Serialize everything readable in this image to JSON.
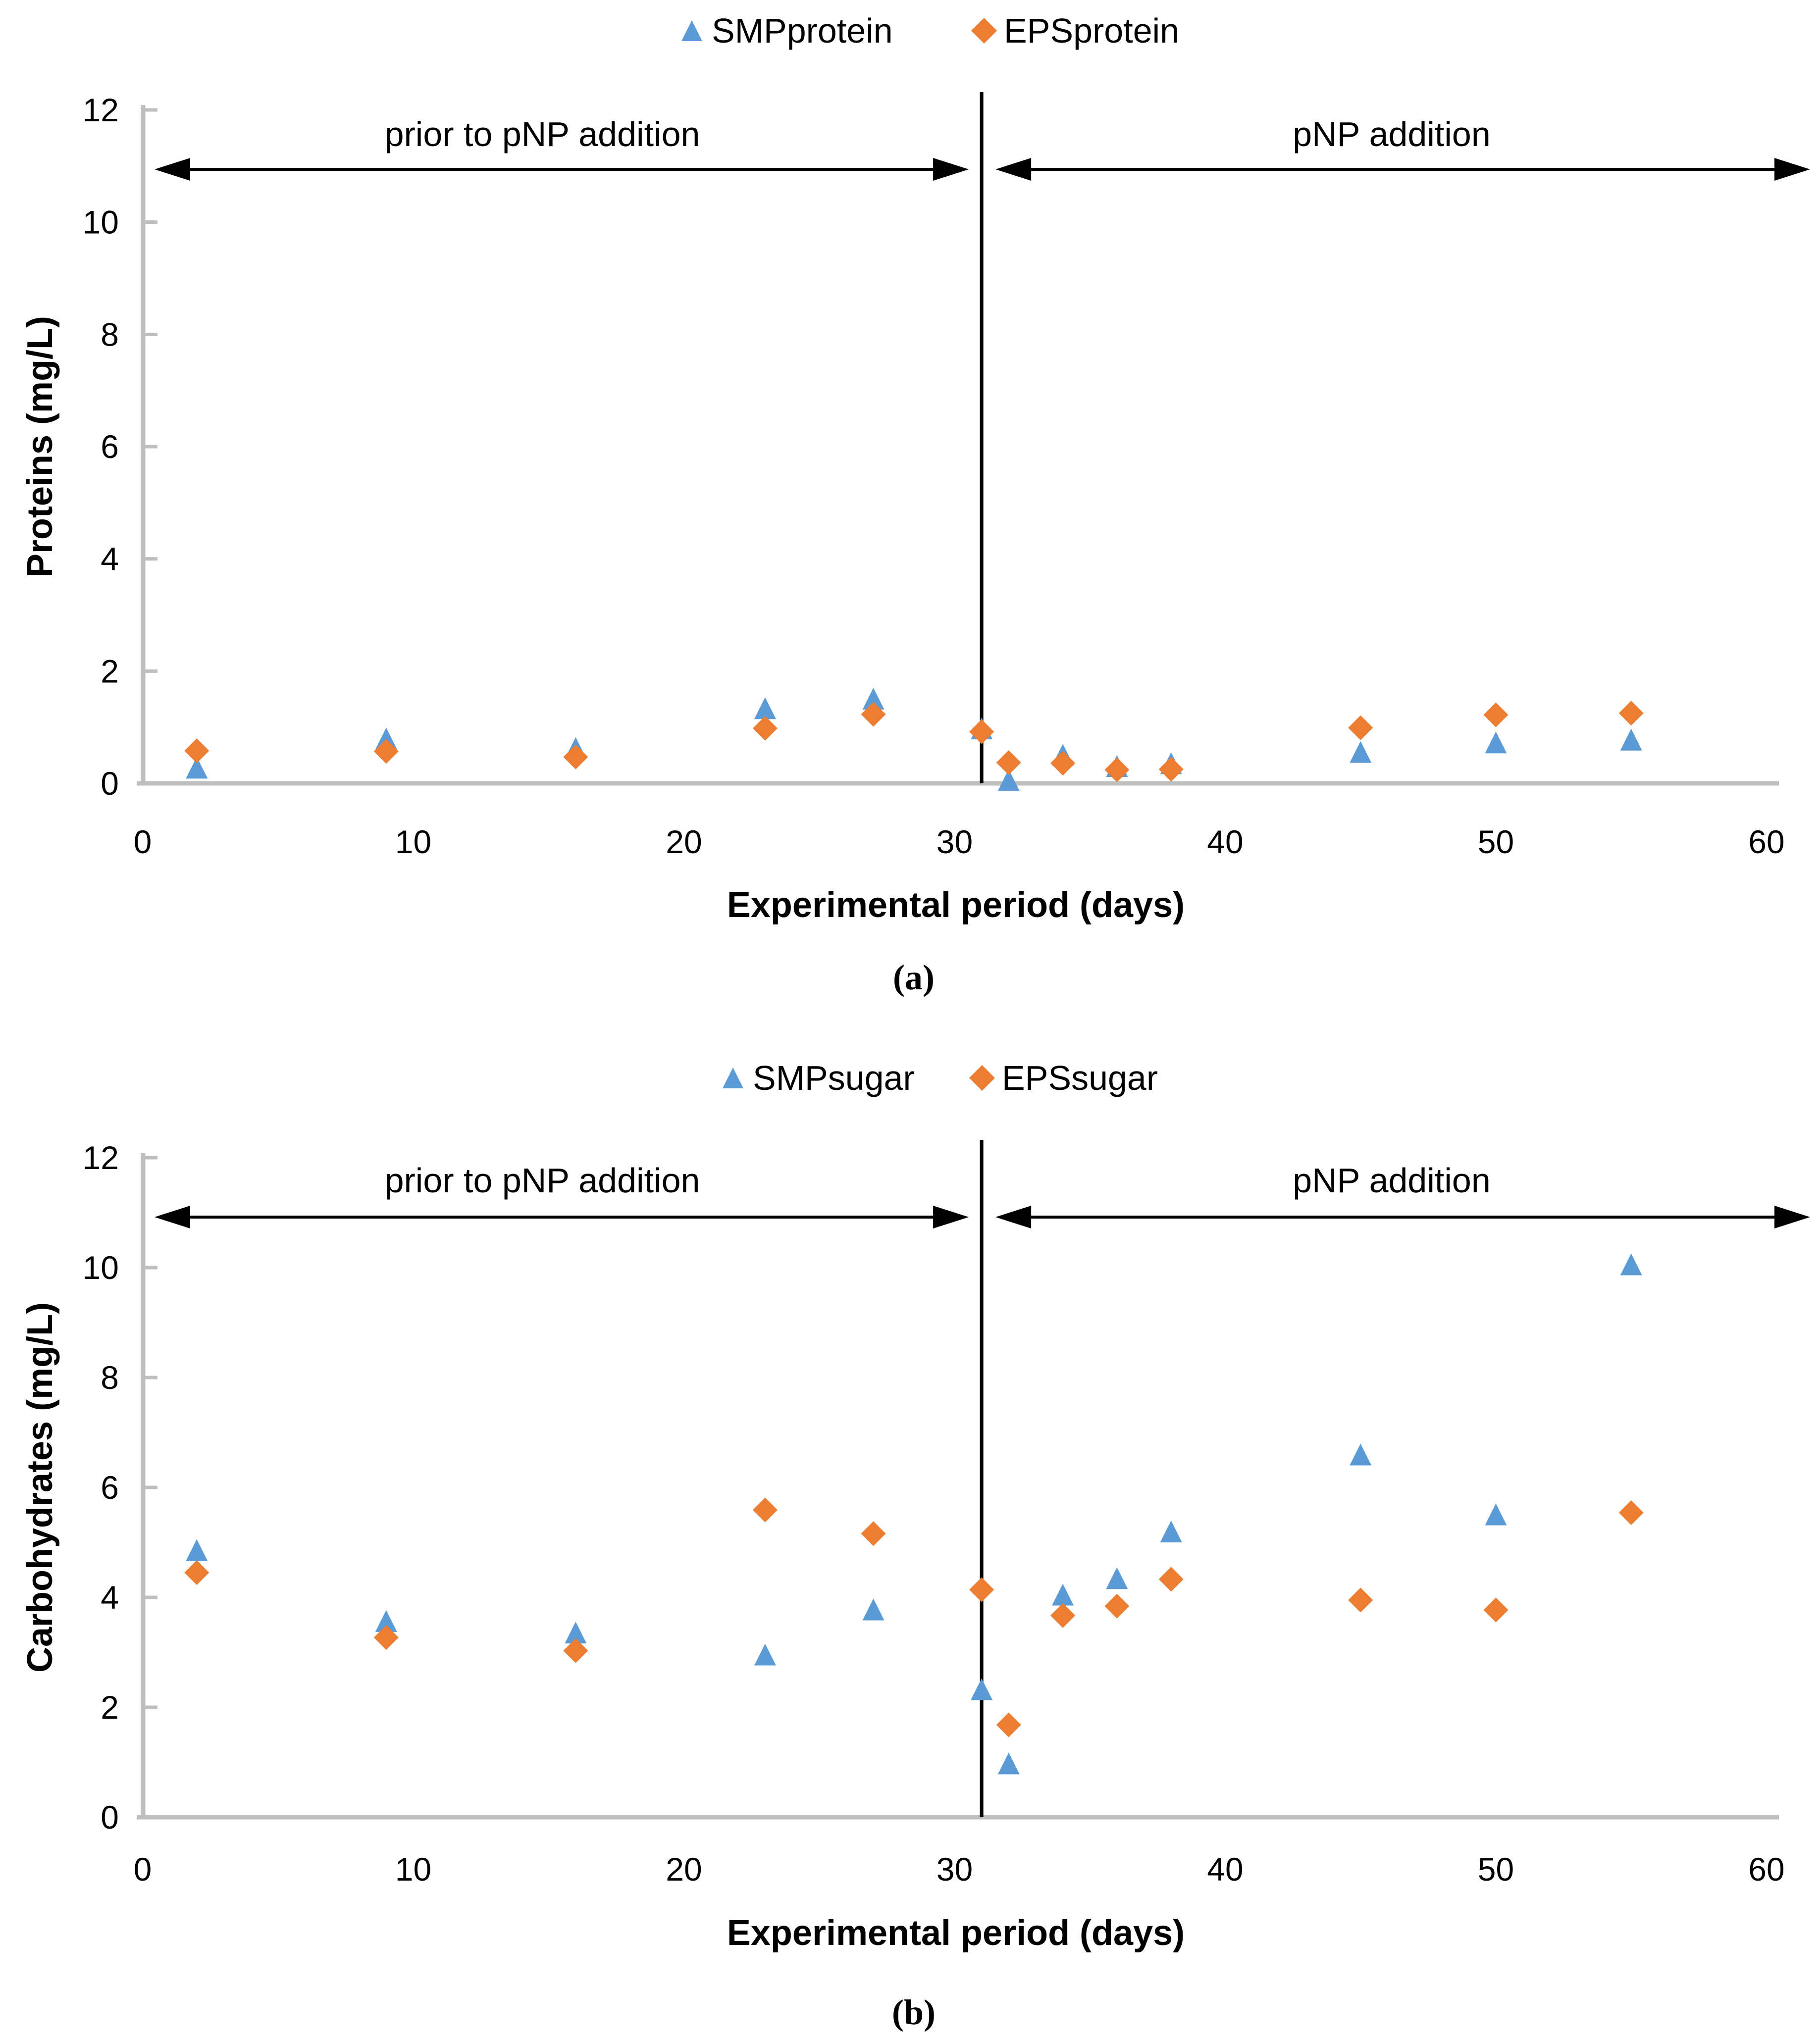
{
  "figure": {
    "captions": {
      "a": "(a)",
      "b": "(b)"
    },
    "colors": {
      "smp_blue": "#5B9BD5",
      "eps_orange": "#ED7D31",
      "axis_gray": "#BFBFBF",
      "divider_black": "#000000"
    }
  },
  "chart_data": [
    {
      "id": "a",
      "type": "scatter",
      "xlabel": "Experimental period (days)",
      "ylabel": "Proteins (mg/L)",
      "xlim": [
        0,
        60
      ],
      "ylim": [
        0,
        12
      ],
      "xticks": [
        0,
        10,
        20,
        30,
        40,
        50,
        60
      ],
      "yticks": [
        0,
        2,
        4,
        6,
        8,
        10,
        12
      ],
      "x_days": [
        2,
        9,
        16,
        23,
        27,
        31,
        32,
        34,
        36,
        38,
        45,
        50,
        55
      ],
      "series": [
        {
          "name": "SMPprotein",
          "marker": "triangle",
          "color": "#5B9BD5",
          "values": [
            0.27,
            0.79,
            0.62,
            1.33,
            1.5,
            0.97,
            0.05,
            0.5,
            0.3,
            0.35,
            0.55,
            0.72,
            0.77
          ]
        },
        {
          "name": "EPSprotein",
          "marker": "diamond",
          "color": "#ED7D31",
          "values": [
            0.58,
            0.57,
            0.47,
            0.98,
            1.23,
            0.92,
            0.37,
            0.36,
            0.24,
            0.25,
            0.99,
            1.22,
            1.25
          ]
        }
      ],
      "annotations": {
        "left_label": "prior to pNP addition",
        "right_label": "pNP addition",
        "divider_day": 31
      },
      "legend_position": "top-center",
      "grid": false
    },
    {
      "id": "b",
      "type": "scatter",
      "xlabel": "Experimental period (days)",
      "ylabel": "Carbohydrates (mg/L)",
      "xlim": [
        0,
        60
      ],
      "ylim": [
        0,
        12
      ],
      "xticks": [
        0,
        10,
        20,
        30,
        40,
        50,
        60
      ],
      "yticks": [
        0,
        2,
        4,
        6,
        8,
        10,
        12
      ],
      "x_days": [
        2,
        9,
        16,
        23,
        27,
        31,
        32,
        34,
        36,
        38,
        45,
        50,
        55
      ],
      "series": [
        {
          "name": "SMPsugar",
          "marker": "triangle",
          "color": "#5B9BD5",
          "values": [
            4.85,
            3.56,
            3.35,
            2.95,
            3.77,
            2.32,
            0.97,
            4.04,
            4.34,
            5.19,
            6.59,
            5.5,
            10.05
          ]
        },
        {
          "name": "EPSsugar",
          "marker": "diamond",
          "color": "#ED7D31",
          "values": [
            4.45,
            3.27,
            3.03,
            5.59,
            5.16,
            4.14,
            1.68,
            3.67,
            3.84,
            4.33,
            3.95,
            3.77,
            5.54
          ]
        }
      ],
      "annotations": {
        "left_label": "prior to pNP addition",
        "right_label": "pNP addition",
        "divider_day": 31
      },
      "legend_position": "top-center",
      "grid": false
    }
  ]
}
